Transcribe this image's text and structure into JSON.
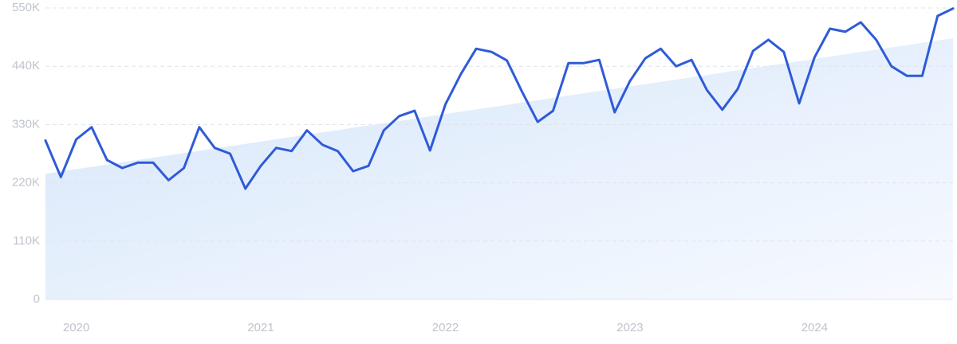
{
  "chart_data": {
    "type": "line",
    "categories": [
      null,
      null,
      "2020",
      null,
      null,
      null,
      null,
      null,
      null,
      null,
      null,
      null,
      null,
      null,
      "2021",
      null,
      null,
      null,
      null,
      null,
      null,
      null,
      null,
      null,
      null,
      null,
      "2022",
      null,
      null,
      null,
      null,
      null,
      null,
      null,
      null,
      null,
      null,
      null,
      "2023",
      null,
      null,
      null,
      null,
      null,
      null,
      null,
      null,
      null,
      null,
      null,
      "2024",
      null,
      null,
      null,
      null,
      null,
      null,
      null,
      null,
      null
    ],
    "values": [
      300000,
      231000,
      302000,
      325000,
      263000,
      248000,
      258000,
      258000,
      225000,
      248000,
      325000,
      286000,
      275000,
      209000,
      252000,
      286000,
      280000,
      319000,
      292000,
      280000,
      242000,
      252000,
      319000,
      346000,
      356000,
      281000,
      368000,
      425000,
      473000,
      467000,
      451000,
      391000,
      335000,
      356000,
      446000,
      446000,
      452000,
      353000,
      412000,
      455000,
      473000,
      440000,
      452000,
      395000,
      358000,
      397000,
      469000,
      490000,
      467000,
      370000,
      457000,
      511000,
      505000,
      523000,
      490000,
      440000,
      422000,
      422000,
      535000,
      549000
    ],
    "trend": [
      237000,
      493000
    ],
    "color": "#2f5bd8",
    "ylim": [
      0,
      550000
    ],
    "yticks": [
      0,
      {
        "value": 110000,
        "label": "110K"
      },
      {
        "value": 220000,
        "label": "220K"
      },
      {
        "value": 330000,
        "label": "330K"
      },
      {
        "value": 440000,
        "label": "440K"
      },
      {
        "value": 550000,
        "label": "550K"
      }
    ],
    "grid": true
  }
}
